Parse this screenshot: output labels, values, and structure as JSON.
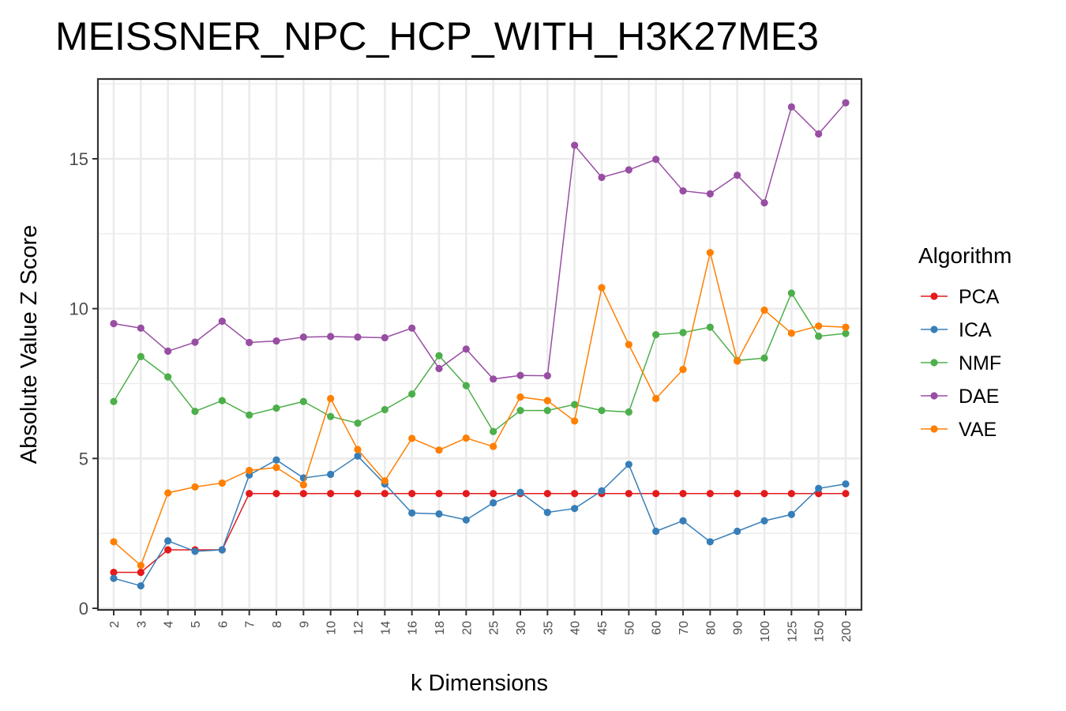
{
  "chart_data": {
    "type": "line",
    "title": "MEISSNER_NPC_HCP_WITH_H3K27ME3",
    "xlabel": "k Dimensions",
    "ylabel": "Absolute Value Z Score",
    "ylim": [
      0,
      17.6
    ],
    "yticks": [
      0,
      5,
      10,
      15
    ],
    "grid": true,
    "legend_title": "Algorithm",
    "legend_position": "right",
    "categories": [
      "2",
      "3",
      "4",
      "5",
      "6",
      "7",
      "8",
      "9",
      "10",
      "12",
      "14",
      "16",
      "18",
      "20",
      "25",
      "30",
      "35",
      "40",
      "45",
      "50",
      "60",
      "70",
      "80",
      "90",
      "100",
      "125",
      "150",
      "200"
    ],
    "series": [
      {
        "name": "PCA",
        "color": "#e41a1c",
        "values": [
          1.2,
          1.2,
          1.95,
          1.95,
          1.95,
          3.83,
          3.83,
          3.83,
          3.83,
          3.83,
          3.83,
          3.83,
          3.83,
          3.83,
          3.83,
          3.83,
          3.83,
          3.83,
          3.83,
          3.83,
          3.83,
          3.83,
          3.83,
          3.83,
          3.83,
          3.83,
          3.83,
          3.83
        ]
      },
      {
        "name": "ICA",
        "color": "#377eb8",
        "values": [
          1.0,
          0.75,
          2.25,
          1.9,
          1.95,
          4.45,
          4.95,
          4.35,
          4.47,
          5.08,
          4.15,
          3.18,
          3.15,
          2.95,
          3.52,
          3.87,
          3.2,
          3.33,
          3.92,
          4.8,
          2.57,
          2.92,
          2.22,
          2.57,
          2.92,
          3.13,
          4.0,
          4.15
        ]
      },
      {
        "name": "NMF",
        "color": "#4daf4a",
        "values": [
          6.9,
          8.4,
          7.72,
          6.57,
          6.93,
          6.45,
          6.68,
          6.9,
          6.4,
          6.18,
          6.63,
          7.15,
          8.43,
          7.43,
          5.9,
          6.6,
          6.6,
          6.8,
          6.6,
          6.55,
          9.13,
          9.2,
          9.38,
          8.27,
          8.35,
          10.52,
          9.08,
          9.17
        ]
      },
      {
        "name": "DAE",
        "color": "#984ea3",
        "values": [
          9.5,
          9.35,
          8.58,
          8.88,
          9.58,
          8.87,
          8.92,
          9.05,
          9.07,
          9.05,
          9.03,
          9.35,
          8.0,
          8.65,
          7.65,
          7.77,
          7.76,
          15.45,
          14.38,
          14.63,
          14.98,
          13.93,
          13.83,
          14.45,
          13.53,
          16.73,
          15.83,
          16.87
        ]
      },
      {
        "name": "VAE",
        "color": "#ff7f00",
        "values": [
          2.22,
          1.43,
          3.85,
          4.05,
          4.18,
          4.6,
          4.7,
          4.12,
          7.0,
          5.3,
          4.25,
          5.67,
          5.28,
          5.68,
          5.4,
          7.05,
          6.93,
          6.25,
          10.7,
          8.8,
          7.0,
          7.97,
          11.87,
          8.25,
          9.95,
          9.18,
          9.42,
          9.38
        ]
      }
    ]
  }
}
